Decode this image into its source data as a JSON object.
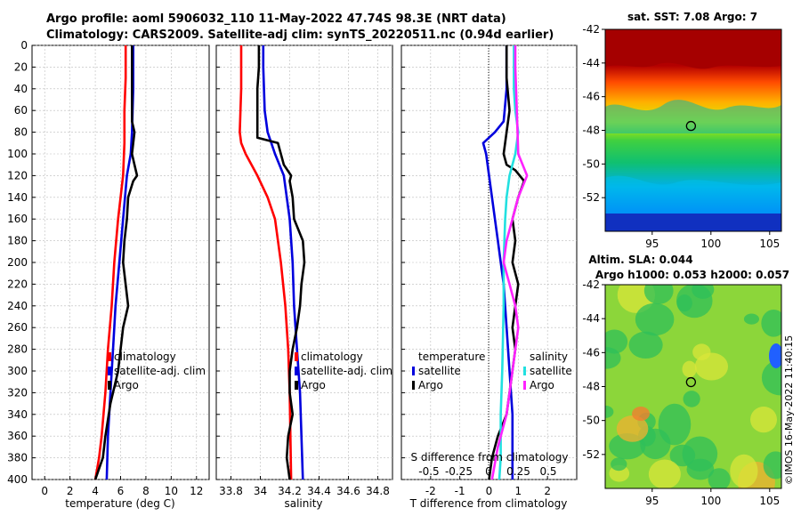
{
  "titles": {
    "line1": "Argo profile: aoml 5906032_110 11-May-2022 47.74S 98.3E (NRT data)",
    "line2": "Climatology: CARS2009. Satellite-adj clim: synTS_20220511.nc (0.94d earlier)"
  },
  "credit": "©IMOS 16-May-2022 11:40:15",
  "colors": {
    "argo": "#000000",
    "climatology": "#ff0000",
    "satellite": "#0000dd",
    "sal_sat": "#22e0e0",
    "sal_argo": "#ff22ff",
    "grid": "#bbbbbb"
  },
  "chart_data": [
    {
      "id": "temperature",
      "type": "line",
      "xlabel": "temperature (deg C)",
      "ylabel": "depth",
      "xlim": [
        -1,
        13
      ],
      "ylim": [
        400,
        0
      ],
      "xticks": [
        0,
        2,
        4,
        6,
        8,
        10,
        12
      ],
      "yticks": [
        0,
        20,
        40,
        60,
        80,
        100,
        120,
        140,
        160,
        180,
        200,
        220,
        240,
        260,
        280,
        300,
        320,
        340,
        360,
        380,
        400
      ],
      "legend": [
        "climatology",
        "satellite-adj. clim",
        "Argo"
      ],
      "series": [
        {
          "name": "climatology",
          "color": "#ff0000",
          "x": [
            6.4,
            6.4,
            6.3,
            6.3,
            6.2,
            6.0,
            5.8,
            5.5,
            5.3,
            5.0,
            4.8,
            4.5,
            4.3,
            4.0
          ],
          "y": [
            0,
            30,
            60,
            90,
            120,
            140,
            160,
            200,
            240,
            280,
            320,
            360,
            380,
            400
          ]
        },
        {
          "name": "satellite-adj. clim",
          "color": "#0000dd",
          "x": [
            7.0,
            7.0,
            6.9,
            6.8,
            6.5,
            6.2,
            5.9,
            5.6,
            5.4,
            5.2,
            5.0,
            4.9
          ],
          "y": [
            0,
            40,
            80,
            100,
            120,
            160,
            200,
            240,
            280,
            320,
            360,
            400
          ]
        },
        {
          "name": "Argo",
          "color": "#000000",
          "x": [
            6.9,
            6.9,
            6.9,
            7.1,
            7.0,
            6.9,
            7.1,
            7.3,
            7.0,
            6.6,
            6.5,
            6.3,
            6.2,
            6.6,
            6.2,
            6.0,
            5.8,
            5.2,
            4.8,
            4.6,
            4.3,
            4.0
          ],
          "y": [
            0,
            40,
            70,
            80,
            90,
            100,
            110,
            120,
            125,
            140,
            160,
            180,
            200,
            240,
            260,
            280,
            300,
            330,
            360,
            380,
            390,
            400
          ]
        }
      ]
    },
    {
      "id": "salinity",
      "type": "line",
      "xlabel": "salinity",
      "ylabel": "depth",
      "xlim": [
        33.7,
        34.9
      ],
      "ylim": [
        400,
        0
      ],
      "xticks": [
        33.8,
        34,
        34.2,
        34.4,
        34.6,
        34.8
      ],
      "legend": [
        "climatology",
        "satellite-adj. clim",
        "Argo"
      ],
      "series": [
        {
          "name": "climatology",
          "color": "#ff0000",
          "x": [
            33.87,
            33.87,
            33.86,
            33.87,
            33.9,
            33.98,
            34.05,
            34.1,
            34.14,
            34.17,
            34.19,
            34.2,
            34.21
          ],
          "y": [
            0,
            40,
            80,
            90,
            100,
            120,
            140,
            160,
            200,
            240,
            280,
            320,
            400
          ]
        },
        {
          "name": "satellite-adj. clim",
          "color": "#0000dd",
          "x": [
            34.02,
            34.02,
            34.03,
            34.05,
            34.1,
            34.16,
            34.2,
            34.22,
            34.23,
            34.25,
            34.27,
            34.29
          ],
          "y": [
            0,
            20,
            60,
            80,
            100,
            120,
            160,
            200,
            240,
            280,
            320,
            400
          ]
        },
        {
          "name": "Argo",
          "color": "#000000",
          "x": [
            33.99,
            33.99,
            33.98,
            33.98,
            33.98,
            34.12,
            34.16,
            34.21,
            34.2,
            34.22,
            34.23,
            34.29,
            34.3,
            34.28,
            34.27,
            34.25,
            34.22,
            34.2,
            34.2,
            34.22,
            34.19,
            34.18,
            34.2
          ],
          "y": [
            0,
            20,
            40,
            60,
            85,
            90,
            110,
            120,
            125,
            140,
            160,
            180,
            200,
            220,
            240,
            260,
            280,
            300,
            320,
            340,
            360,
            380,
            400
          ]
        }
      ]
    },
    {
      "id": "difference",
      "type": "line",
      "xlabel": "T difference from climatology",
      "top_xlabel": "S difference from climatology",
      "ylabel": "depth",
      "xlim": [
        -3,
        3
      ],
      "ylim": [
        400,
        0
      ],
      "xticks": [
        -2,
        -1,
        0,
        1,
        2
      ],
      "top_xticks": [
        "-0.5",
        "-0.25",
        "0",
        "0.25",
        "0.5"
      ],
      "legend_temperature": {
        "title": "temperature",
        "entries": [
          "satellite",
          "Argo"
        ]
      },
      "legend_salinity": {
        "title": "salinity",
        "entries": [
          "satellite",
          "Argo"
        ]
      },
      "series": [
        {
          "name": "T satellite",
          "color": "#0000dd",
          "x": [
            0.6,
            0.6,
            0.5,
            0.2,
            -0.2,
            -0.1,
            0.0,
            0.1,
            0.3,
            0.5,
            0.6,
            0.7,
            0.8,
            0.8
          ],
          "y": [
            0,
            40,
            70,
            80,
            90,
            100,
            120,
            140,
            180,
            220,
            260,
            300,
            340,
            400
          ]
        },
        {
          "name": "T Argo",
          "color": "#000000",
          "x": [
            0.6,
            0.6,
            0.7,
            0.6,
            0.5,
            0.6,
            0.9,
            1.2,
            1.0,
            0.8,
            0.9,
            0.8,
            1.0,
            0.9,
            0.8,
            0.9,
            0.7,
            0.6,
            0.3,
            0.1,
            0.0
          ],
          "y": [
            0,
            30,
            60,
            80,
            100,
            110,
            115,
            125,
            140,
            160,
            180,
            200,
            220,
            240,
            260,
            280,
            320,
            340,
            360,
            380,
            400
          ]
        },
        {
          "name": "S satellite",
          "color": "#22e0e0",
          "x": [
            0.85,
            0.85,
            0.9,
            1.0,
            0.9,
            0.7,
            0.6,
            0.55,
            0.5,
            0.5,
            0.45,
            0.4,
            0.4,
            0.35
          ],
          "y": [
            0,
            40,
            60,
            80,
            100,
            120,
            140,
            160,
            200,
            240,
            300,
            340,
            380,
            400
          ]
        },
        {
          "name": "S Argo",
          "color": "#ff22ff",
          "x": [
            0.9,
            0.9,
            0.95,
            1.0,
            1.3,
            1.0,
            0.8,
            0.6,
            0.5,
            0.7,
            0.9,
            1.0,
            0.8,
            0.6,
            0.3,
            0.1
          ],
          "y": [
            0,
            20,
            60,
            100,
            120,
            140,
            160,
            180,
            200,
            220,
            240,
            260,
            300,
            340,
            370,
            400
          ]
        }
      ]
    },
    {
      "id": "sst_map",
      "type": "heatmap",
      "title": "sat. SST: 7.08 Argo: 7",
      "xlim": [
        91,
        106
      ],
      "ylim": [
        -54,
        -42
      ],
      "xticks": [
        95,
        100,
        105
      ],
      "yticks": [
        -42,
        -44,
        -46,
        -48,
        -50,
        -52
      ],
      "argo_position": [
        98.3,
        -47.74
      ]
    },
    {
      "id": "sla_map",
      "type": "heatmap",
      "title_line1": "Altim. SLA: 0.044",
      "title_line2": "Argo h1000: 0.053 h2000: 0.057",
      "xlim": [
        91,
        106
      ],
      "ylim": [
        -54,
        -42
      ],
      "xticks": [
        95,
        100,
        105
      ],
      "yticks": [
        -42,
        -44,
        -46,
        -48,
        -50,
        -52
      ],
      "argo_position": [
        98.3,
        -47.74
      ]
    }
  ]
}
